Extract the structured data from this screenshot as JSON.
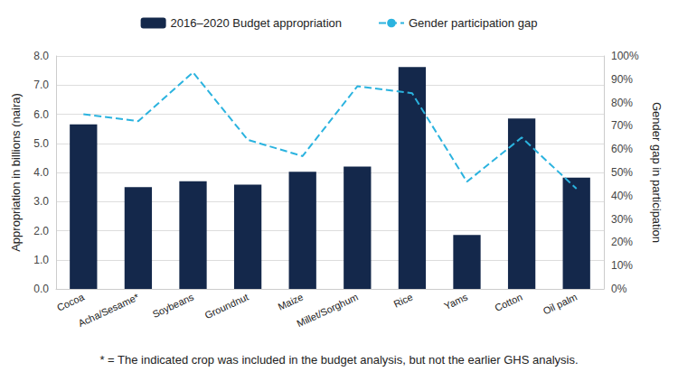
{
  "chart_data": {
    "type": "bar",
    "categories": [
      "Cocoa",
      "Acha/Sesame*",
      "Soybeans",
      "Groundnut",
      "Maize",
      "Millet/Sorghum",
      "Rice",
      "Yams",
      "Cotton",
      "Oil palm"
    ],
    "series": [
      {
        "name": "2016–2020 Budget appropriation",
        "type": "bar",
        "color": "#14284b",
        "values": [
          5.65,
          3.5,
          3.7,
          3.58,
          4.02,
          4.2,
          7.62,
          1.85,
          5.85,
          3.82
        ]
      },
      {
        "name": "Gender participation gap",
        "type": "line",
        "axis": "y2",
        "color": "#2bb3df",
        "line_style": "dashed",
        "marker": "none",
        "values": [
          75,
          72,
          93,
          64,
          57,
          87,
          84,
          46,
          65,
          43
        ]
      }
    ],
    "y_label": "Appropriation in billions (naira)",
    "y2_label": "Gender gap in participation",
    "ylim": [
      0,
      8
    ],
    "yticks": [
      {
        "value": 0,
        "label": "0.0"
      },
      {
        "value": 1,
        "label": "1.0"
      },
      {
        "value": 2,
        "label": "2.0"
      },
      {
        "value": 3,
        "label": "3.0"
      },
      {
        "value": 4,
        "label": "4.0"
      },
      {
        "value": 5,
        "label": "5.0"
      },
      {
        "value": 6,
        "label": "6.0"
      },
      {
        "value": 7,
        "label": "7.0"
      },
      {
        "value": 8,
        "label": "8.0"
      }
    ],
    "y2lim": [
      0,
      100
    ],
    "y2ticks": [
      {
        "value": 0,
        "label": "0%"
      },
      {
        "value": 10,
        "label": "10%"
      },
      {
        "value": 20,
        "label": "20%"
      },
      {
        "value": 30,
        "label": "30%"
      },
      {
        "value": 40,
        "label": "40%"
      },
      {
        "value": 50,
        "label": "50%"
      },
      {
        "value": 60,
        "label": "60%"
      },
      {
        "value": 70,
        "label": "70%"
      },
      {
        "value": 80,
        "label": "80%"
      },
      {
        "value": 90,
        "label": "90%"
      },
      {
        "value": 100,
        "label": "100%"
      }
    ],
    "annotations": [
      "* = The indicated crop was included in the budget analysis, but not the earlier GHS analysis."
    ],
    "grid": true,
    "legend": "top"
  }
}
